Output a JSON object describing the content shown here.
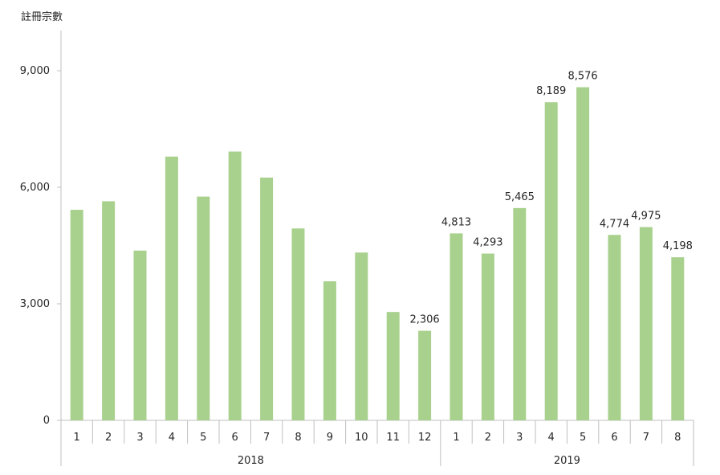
{
  "chart_data": {
    "type": "bar",
    "ylabel": "註冊宗數",
    "ylim": [
      0,
      9600
    ],
    "yticks": [
      0,
      3000,
      6000,
      9000
    ],
    "ytick_labels": [
      "0",
      "3,000",
      "6,000",
      "9,000"
    ],
    "bar_color": "#a9d18e",
    "groups": [
      {
        "label": "2018",
        "start": 0,
        "count": 12
      },
      {
        "label": "2019",
        "start": 12,
        "count": 8
      }
    ],
    "categories": [
      "1",
      "2",
      "3",
      "4",
      "5",
      "6",
      "7",
      "8",
      "9",
      "10",
      "11",
      "12",
      "1",
      "2",
      "3",
      "4",
      "5",
      "6",
      "7",
      "8"
    ],
    "values": [
      5420,
      5640,
      4370,
      6790,
      5760,
      6920,
      6250,
      4940,
      3580,
      4320,
      2790,
      2306,
      4813,
      4293,
      5465,
      8189,
      8576,
      4774,
      4975,
      4198
    ],
    "data_labels": [
      "",
      "",
      "",
      "",
      "",
      "",
      "",
      "",
      "",
      "",
      "",
      "2,306",
      "4,813",
      "4,293",
      "5,465",
      "8,189",
      "8,576",
      "4,774",
      "4,975",
      "4,198"
    ]
  }
}
